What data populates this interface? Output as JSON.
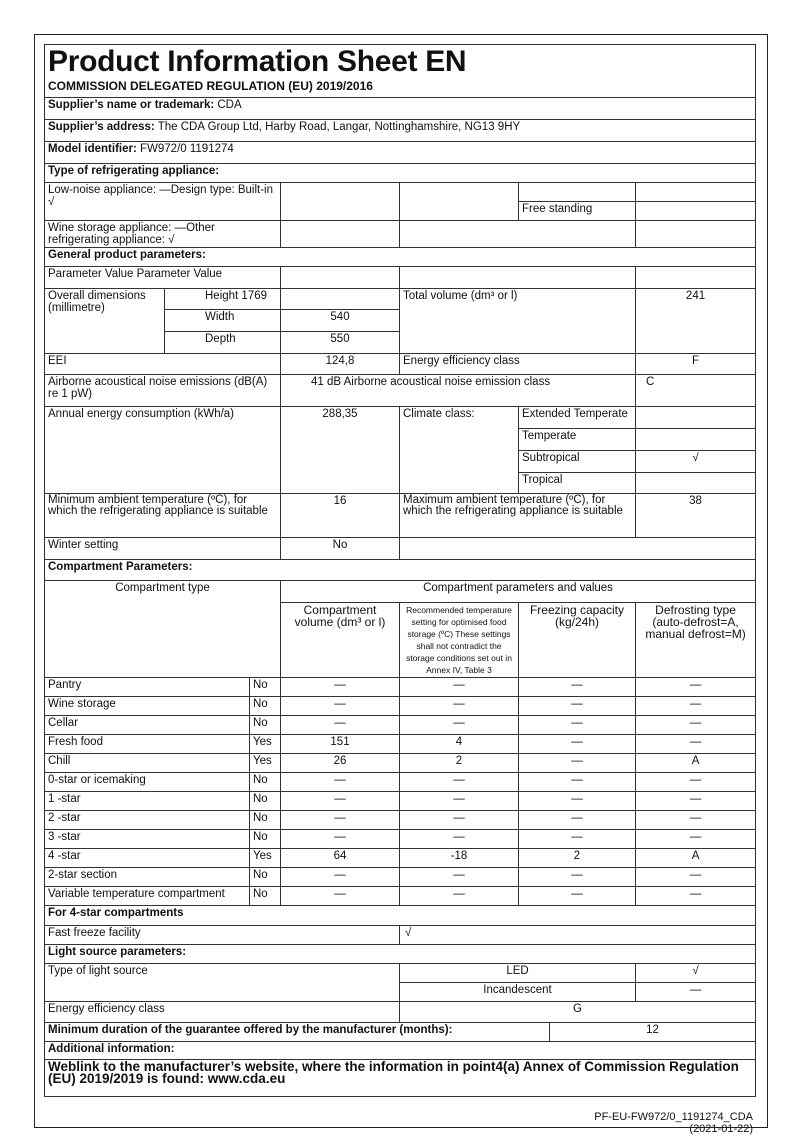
{
  "header": {
    "title": "Product Information Sheet  EN",
    "regulation": "COMMISSION DELEGATED REGULATION (EU) 2019/2016"
  },
  "supplier": {
    "name_label": "Supplier’s name or trademark:",
    "name": "CDA",
    "address_label": "Supplier’s address:",
    "address": "The CDA Group Ltd, Harby Road, Langar, Nottinghamshire, NG13 9HY",
    "model_label": "Model identifier:",
    "model": "FW972/0 1191274"
  },
  "type": {
    "heading": "Type of refrigerating appliance:",
    "low_noise": "Low-noise appliance: —Design type: Built-in √",
    "free_standing": "Free standing",
    "wine": "Wine storage appliance: —Other refrigerating appliance: √"
  },
  "general": {
    "heading": "General product parameters:",
    "param_header": "Parameter Value Parameter Value",
    "overall_dims": "Overall dimensions (millimetre)",
    "height": "Height 1769",
    "width_label": "Width",
    "width": "540",
    "depth_label": "Depth",
    "depth": "550",
    "total_volume_label": "Total volume (dm³ or l)",
    "total_volume": "241",
    "eei_label": "EEI",
    "eei": "124,8",
    "energy_class_label": "Energy efficiency class",
    "energy_class": "F",
    "noise_label": "Airborne acoustical noise emissions (dB(A) re 1 pW)",
    "noise": "41 dB Airborne acoustical noise emission class",
    "noise_class": "C",
    "annual_label": "Annual energy consumption (kWh/a)",
    "annual": "288,35",
    "climate_label": "Climate class:",
    "climate": [
      {
        "name": "Extended Temperate",
        "value": ""
      },
      {
        "name": "Temperate",
        "value": ""
      },
      {
        "name": "Subtropical",
        "value": "√"
      },
      {
        "name": "Tropical",
        "value": ""
      }
    ],
    "min_amb_label": "Minimum ambient temperature (ºC), for which the refrigerating appliance is suitable",
    "min_amb": "16",
    "max_amb_label": "Maximum ambient temperature (ºC), for which the refrigerating appliance is suitable",
    "max_amb": "38",
    "winter_label": "Winter setting",
    "winter": "No"
  },
  "compartment": {
    "heading": "Compartment Parameters:",
    "type_header": "Compartment type",
    "values_header": "Compartment parameters and values",
    "col_volume": "Compartment volume (dm³ or l)",
    "col_temp": "Recommended temperature setting for optimised food storage (ºC) These settings shall not contradict the storage conditions set out in Annex IV, Table 3",
    "col_freeze": "Freezing capacity (kg/24h)",
    "col_defrost": "Defrosting type (auto-defrost=A, manual defrost=M)",
    "rows": [
      [
        "Pantry",
        "No",
        "—",
        "—",
        "—",
        "—"
      ],
      [
        "Wine storage",
        "No",
        "—",
        "—",
        "—",
        "—"
      ],
      [
        "Cellar",
        "No",
        "—",
        "—",
        "—",
        "—"
      ],
      [
        "Fresh food",
        "Yes",
        "151",
        "4",
        "—",
        "—"
      ],
      [
        "Chill",
        "Yes",
        "26",
        "2",
        "—",
        "A"
      ],
      [
        "0-star or icemaking",
        "No",
        "—",
        "—",
        "—",
        "—"
      ],
      [
        "1 -star",
        "No",
        "—",
        "—",
        "—",
        "—"
      ],
      [
        "2 -star",
        "No",
        "—",
        "—",
        "—",
        "—"
      ],
      [
        "3 -star",
        "No",
        "—",
        "—",
        "—",
        "—"
      ],
      [
        "4 -star",
        "Yes",
        "64",
        "-18",
        "2",
        "A"
      ],
      [
        "2-star section",
        "No",
        "—",
        "—",
        "—",
        "—"
      ],
      [
        "Variable temperature compartment",
        "No",
        "—",
        "—",
        "—",
        "—"
      ]
    ]
  },
  "four_star": {
    "heading": "For 4-star compartments",
    "fast_freeze_label": "Fast freeze facility",
    "fast_freeze": "√"
  },
  "light": {
    "heading": "Light source parameters:",
    "type_label": "Type of light source",
    "led": "LED",
    "led_value": "√",
    "incandescent": "Incandescent",
    "incandescent_value": "—",
    "energy_label": "Energy efficiency class",
    "energy": "G"
  },
  "guarantee": {
    "label": "Minimum duration of the guarantee offered by the manufacturer (months):",
    "value": "12"
  },
  "additional": {
    "heading": "Additional information:",
    "weblink": "Weblink to the manufacturer’s website, where the information in point4(a) Annex of Commission Regulation (EU) 2019/2019 is found: www.cda.eu"
  },
  "footer": {
    "ref": "PF-EU-FW972/0_1191274_CDA",
    "date": "(2021-01-22)"
  }
}
